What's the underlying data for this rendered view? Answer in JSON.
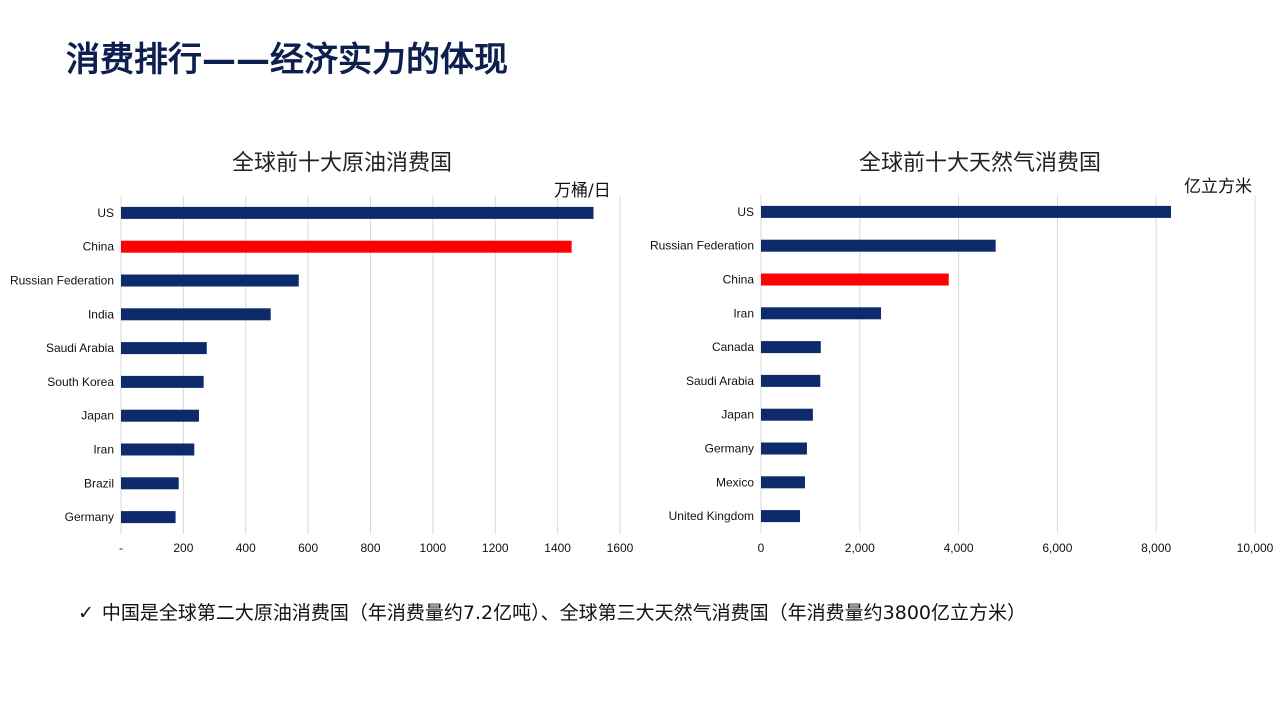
{
  "slide": {
    "title": "消费排行——经济实力的体现",
    "note_check": "✓",
    "note": "中国是全球第二大原油消费国（年消费量约7.2亿吨）、全球第三大天然气消费国（年消费量约3800亿立方米）"
  },
  "colors": {
    "bar": "#0d2b6b",
    "highlight": "#ff0000",
    "grid": "#d9d9d9",
    "title": "#0d1f4f"
  },
  "chart_data": [
    {
      "type": "bar",
      "orientation": "horizontal",
      "title": "全球前十大原油消费国",
      "unit": "万桶/日",
      "categories": [
        "US",
        "China",
        "Russian Federation",
        "India",
        "Saudi Arabia",
        "South Korea",
        "Japan",
        "Iran",
        "Brazil",
        "Germany"
      ],
      "values": [
        1515,
        1445,
        570,
        480,
        275,
        265,
        250,
        235,
        185,
        175
      ],
      "highlight": "China",
      "xlim": [
        0,
        1600
      ],
      "xticks": [
        0,
        200,
        400,
        600,
        800,
        1000,
        1200,
        1400,
        1600
      ],
      "xtick_labels": [
        "-",
        "200",
        "400",
        "600",
        "800",
        "1000",
        "1200",
        "1400",
        "1600"
      ],
      "grid": true
    },
    {
      "type": "bar",
      "orientation": "horizontal",
      "title": "全球前十大天然气消费国",
      "unit": "亿立方米",
      "categories": [
        "US",
        "Russian Federation",
        "China",
        "Iran",
        "Canada",
        "Saudi Arabia",
        "Japan",
        "Germany",
        "Mexico",
        "United Kingdom"
      ],
      "values": [
        8300,
        4750,
        3800,
        2430,
        1210,
        1200,
        1050,
        930,
        890,
        790
      ],
      "highlight": "China",
      "xlim": [
        0,
        10000
      ],
      "xticks": [
        0,
        2000,
        4000,
        6000,
        8000,
        10000
      ],
      "xtick_labels": [
        "0",
        "2,000",
        "4,000",
        "6,000",
        "8,000",
        "10,000"
      ],
      "grid": true
    }
  ]
}
